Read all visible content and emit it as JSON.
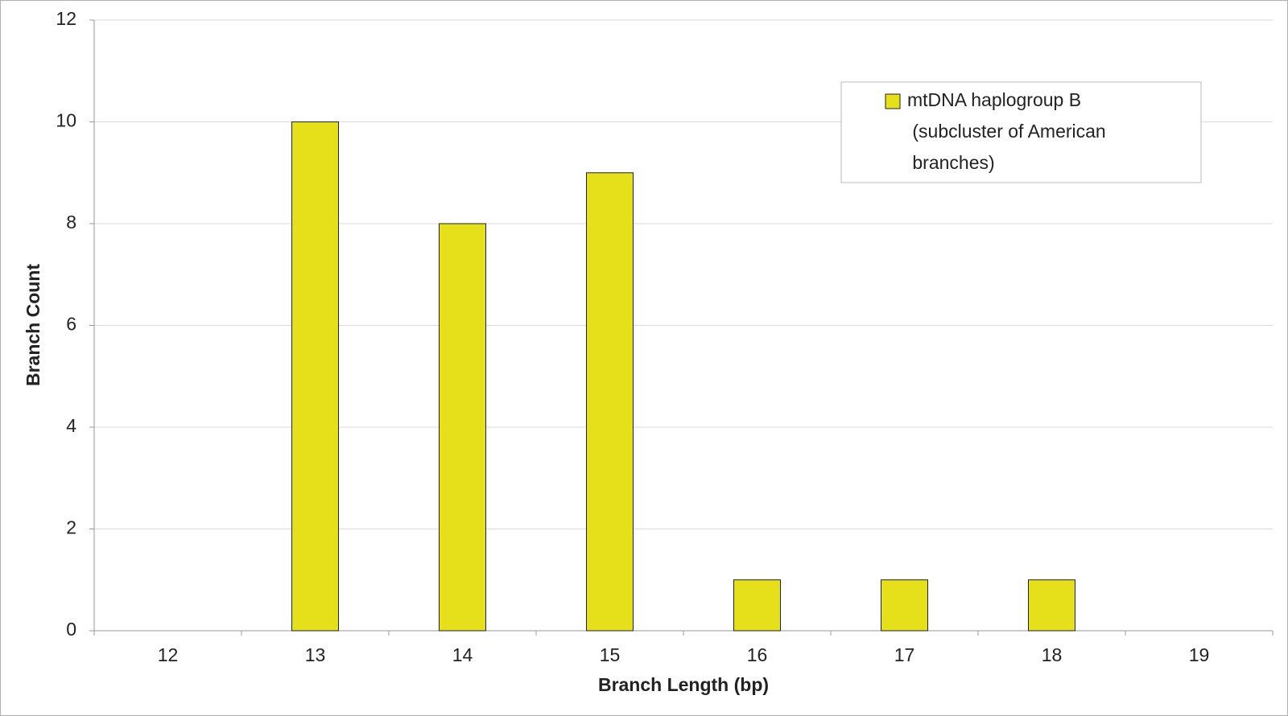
{
  "chart_data": {
    "type": "bar",
    "x_label": "Branch Length (bp)",
    "y_label": "Branch Count",
    "categories": [
      "12",
      "13",
      "14",
      "15",
      "16",
      "17",
      "18",
      "19"
    ],
    "series": [
      {
        "name": "mtDNA haplogroup B (subcluster of American branches)",
        "color": "#e6e01a",
        "values": [
          0,
          10,
          8,
          9,
          1,
          1,
          1,
          0
        ]
      }
    ],
    "ylim": [
      0,
      12
    ],
    "yticks": [
      0,
      2,
      4,
      6,
      8,
      10,
      12
    ],
    "grid": true,
    "legend": "upper right"
  }
}
